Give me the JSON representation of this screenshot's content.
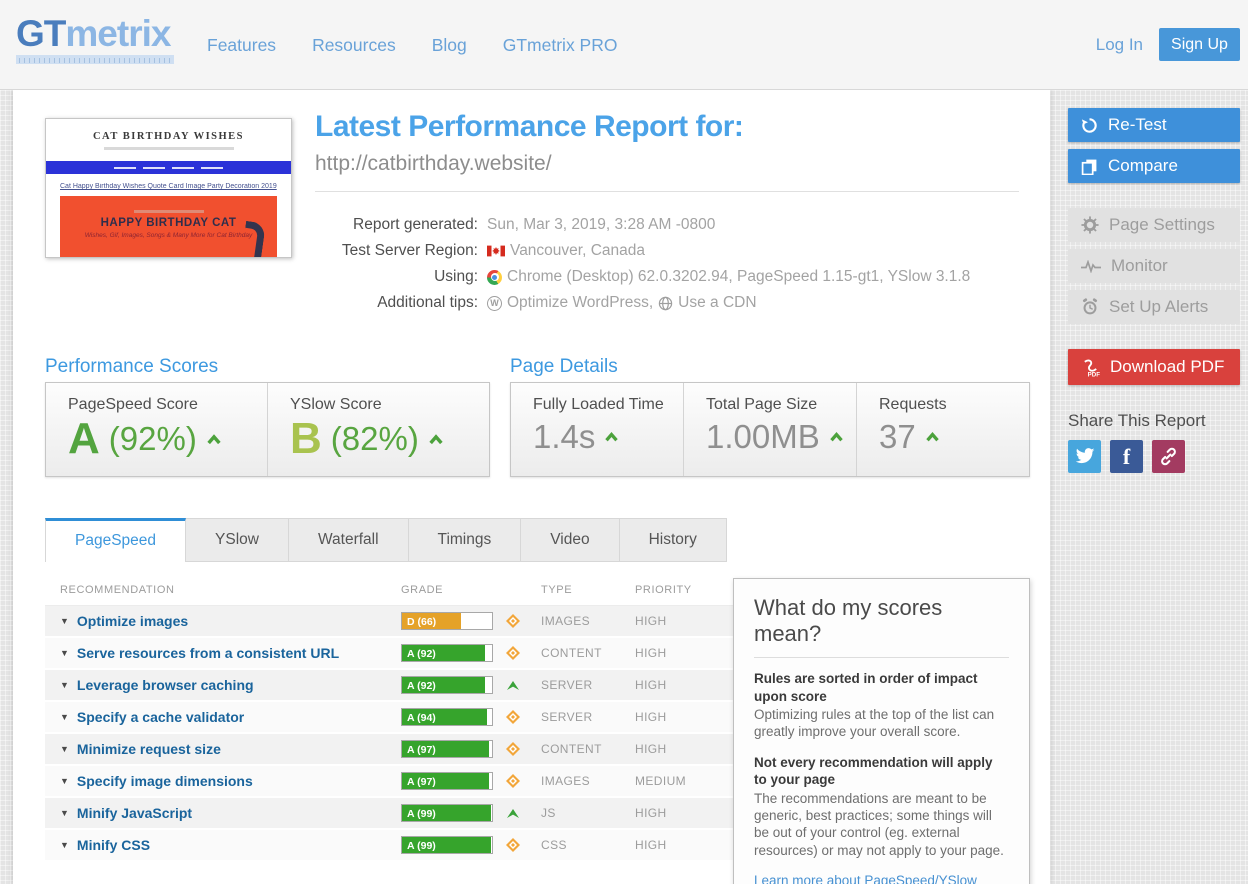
{
  "header": {
    "logo_part1": "GT",
    "logo_part2": "metrix",
    "nav_items": [
      "Features",
      "Resources",
      "Blog",
      "GTmetrix PRO"
    ],
    "login_label": "Log In",
    "signup_label": "Sign Up"
  },
  "thumbnail": {
    "site_title": "CAT BIRTHDAY WISHES",
    "article_heading": "Cat Happy Birthday Wishes Quote Card Image Party Decoration 2019",
    "card_title": "HAPPY BIRTHDAY CAT",
    "card_subtitle": "Wishes, Gif, Images, Songs & Many More for Cat Birthday"
  },
  "report": {
    "title": "Latest Performance Report for:",
    "url": "http://catbirthday.website/",
    "generated_label": "Report generated:",
    "generated_value": "Sun, Mar 3, 2019, 3:28 AM -0800",
    "region_label": "Test Server Region:",
    "region_value": "Vancouver, Canada",
    "using_label": "Using:",
    "using_value": "Chrome (Desktop) 62.0.3202.94, PageSpeed 1.15-gt1, YSlow 3.1.8",
    "tips_label": "Additional tips:",
    "tips_link1": "Optimize WordPress,",
    "tips_link2": "Use a CDN"
  },
  "performance_scores": {
    "title": "Performance Scores",
    "items": [
      {
        "label": "PageSpeed Score",
        "grade": "A",
        "percent": "(92%)"
      },
      {
        "label": "YSlow Score",
        "grade": "B",
        "percent": "(82%)"
      }
    ]
  },
  "page_details": {
    "title": "Page Details",
    "items": [
      {
        "label": "Fully Loaded Time",
        "value": "1.4s"
      },
      {
        "label": "Total Page Size",
        "value": "1.00MB"
      },
      {
        "label": "Requests",
        "value": "37"
      }
    ]
  },
  "tabs": {
    "items": [
      "PageSpeed",
      "YSlow",
      "Waterfall",
      "Timings",
      "Video",
      "History"
    ],
    "active": "PageSpeed"
  },
  "recommendations": {
    "columns": [
      "RECOMMENDATION",
      "GRADE",
      "TYPE",
      "PRIORITY"
    ],
    "rows": [
      {
        "name": "Optimize images",
        "grade_label": "D (66)",
        "grade_percent": 66,
        "grade_color": "orange",
        "trend": "diamond",
        "type": "IMAGES",
        "priority": "HIGH"
      },
      {
        "name": "Serve resources from a consistent URL",
        "grade_label": "A (92)",
        "grade_percent": 92,
        "grade_color": "green",
        "trend": "diamond",
        "type": "CONTENT",
        "priority": "HIGH"
      },
      {
        "name": "Leverage browser caching",
        "grade_label": "A (92)",
        "grade_percent": 92,
        "grade_color": "green",
        "trend": "up",
        "type": "SERVER",
        "priority": "HIGH"
      },
      {
        "name": "Specify a cache validator",
        "grade_label": "A (94)",
        "grade_percent": 94,
        "grade_color": "green",
        "trend": "diamond",
        "type": "SERVER",
        "priority": "HIGH"
      },
      {
        "name": "Minimize request size",
        "grade_label": "A (97)",
        "grade_percent": 97,
        "grade_color": "green",
        "trend": "diamond",
        "type": "CONTENT",
        "priority": "HIGH"
      },
      {
        "name": "Specify image dimensions",
        "grade_label": "A (97)",
        "grade_percent": 97,
        "grade_color": "green",
        "trend": "diamond",
        "type": "IMAGES",
        "priority": "MEDIUM"
      },
      {
        "name": "Minify JavaScript",
        "grade_label": "A (99)",
        "grade_percent": 99,
        "grade_color": "green",
        "trend": "up",
        "type": "JS",
        "priority": "HIGH"
      },
      {
        "name": "Minify CSS",
        "grade_label": "A (99)",
        "grade_percent": 99,
        "grade_color": "green",
        "trend": "diamond",
        "type": "CSS",
        "priority": "HIGH"
      }
    ]
  },
  "scores_info": {
    "title": "What do my scores mean?",
    "sections": [
      {
        "heading": "Rules are sorted in order of impact upon score",
        "body": "Optimizing rules at the top of the list can greatly improve your overall score."
      },
      {
        "heading": "Not every recommendation will apply to your page",
        "body": "The recommendations are meant to be generic, best practices; some things will be out of your control (eg. external resources) or may not apply to your page."
      }
    ],
    "link": "Learn more about PageSpeed/YSlow scores and how they affect performance."
  },
  "sidebar": {
    "retest_label": "Re-Test",
    "compare_label": "Compare",
    "page_settings_label": "Page Settings",
    "monitor_label": "Monitor",
    "alerts_label": "Set Up Alerts",
    "download_label": "Download PDF",
    "share_title": "Share This Report"
  },
  "colors": {
    "accent_blue": "#3d97dc",
    "grade_green": "#36a42c",
    "grade_orange": "#e5a228",
    "danger_red": "#d9413d",
    "twitter_blue": "#47a6dd",
    "facebook_blue": "#3a5a97",
    "share_link_maroon": "#a33b61"
  }
}
